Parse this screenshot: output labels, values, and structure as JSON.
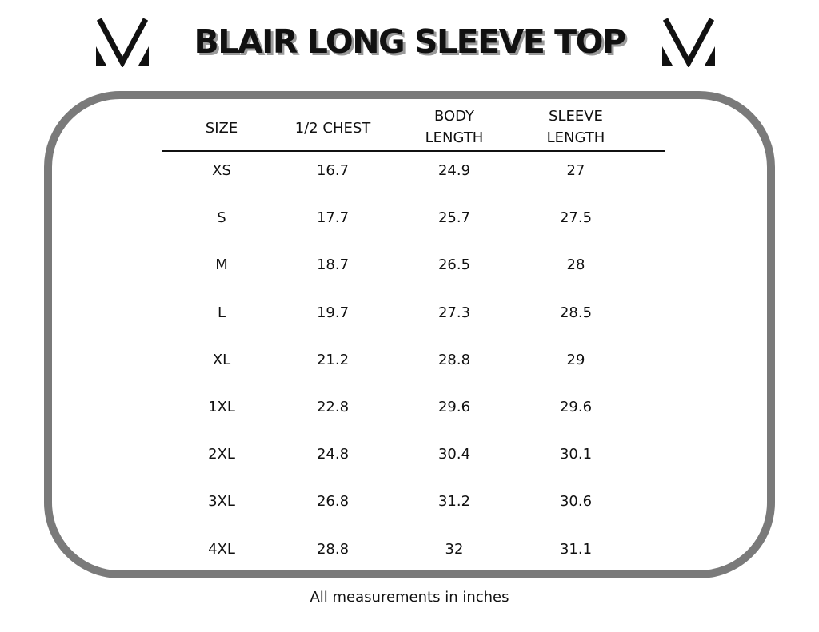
{
  "title": "BLAIR LONG SLEEVE TOP",
  "logo": {
    "icon": "brand-v-logo",
    "color": "#111111"
  },
  "border_color": "#7a7a7a",
  "table": {
    "headers": [
      [
        "SIZE"
      ],
      [
        "1/2 CHEST"
      ],
      [
        "BODY",
        "LENGTH"
      ],
      [
        "SLEEVE",
        "LENGTH"
      ]
    ],
    "rows": [
      [
        "XS",
        "16.7",
        "24.9",
        "27"
      ],
      [
        "S",
        "17.7",
        "25.7",
        "27.5"
      ],
      [
        "M",
        "18.7",
        "26.5",
        "28"
      ],
      [
        "L",
        "19.7",
        "27.3",
        "28.5"
      ],
      [
        "XL",
        "21.2",
        "28.8",
        "29"
      ],
      [
        "1XL",
        "22.8",
        "29.6",
        "29.6"
      ],
      [
        "2XL",
        "24.8",
        "30.4",
        "30.1"
      ],
      [
        "3XL",
        "26.8",
        "31.2",
        "30.6"
      ],
      [
        "4XL",
        "28.8",
        "32",
        "31.1"
      ]
    ]
  },
  "footer": "All measurements in inches"
}
